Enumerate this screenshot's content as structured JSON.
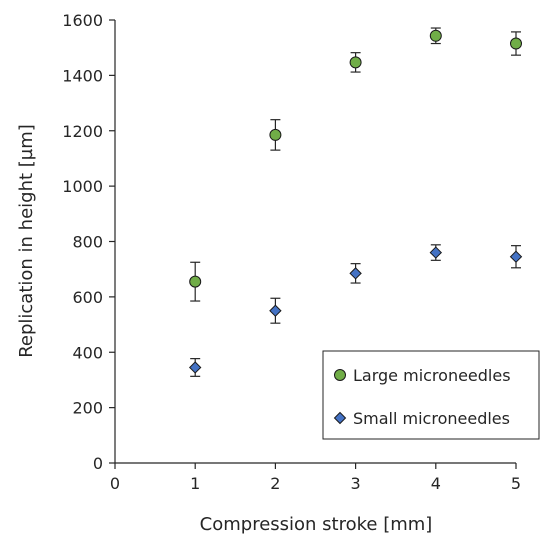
{
  "chart_data": {
    "type": "scatter",
    "xlabel": "Compression stroke [mm]",
    "ylabel": "Replication in height [µm]",
    "xlim": [
      0,
      5
    ],
    "ylim": [
      0,
      1600
    ],
    "x_ticks": [
      "0",
      "1",
      "2",
      "3",
      "4",
      "5"
    ],
    "y_ticks": [
      "0",
      "200",
      "400",
      "600",
      "800",
      "1000",
      "1200",
      "1400",
      "1600"
    ],
    "grid": false,
    "legend_position": "bottom-right",
    "series": [
      {
        "name": "Large microneedles",
        "marker": "circle",
        "color": "#70ad47",
        "x": [
          1,
          2,
          3,
          4,
          5
        ],
        "y": [
          655,
          1185,
          1447,
          1543,
          1515
        ],
        "error": [
          70,
          55,
          35,
          28,
          42
        ]
      },
      {
        "name": "Small microneedles",
        "marker": "diamond",
        "color": "#4472c4",
        "x": [
          1,
          2,
          3,
          4,
          5
        ],
        "y": [
          345,
          550,
          685,
          760,
          745
        ],
        "error": [
          32,
          45,
          35,
          28,
          40
        ]
      }
    ]
  }
}
